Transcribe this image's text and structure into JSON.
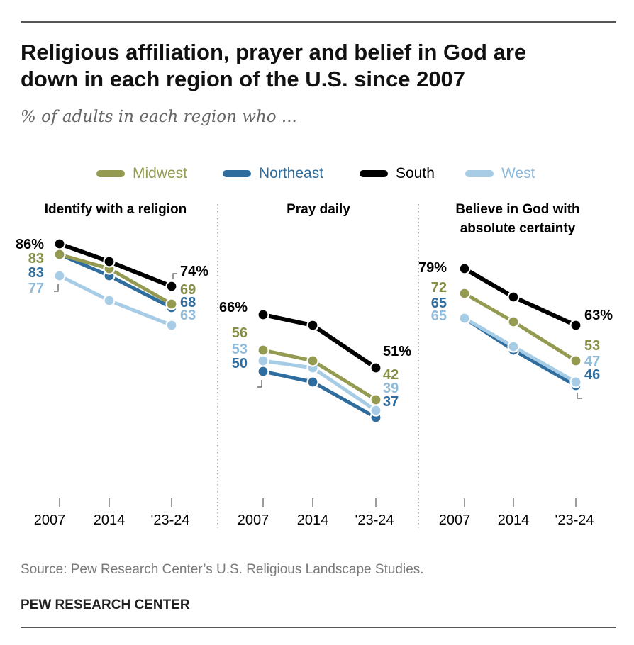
{
  "header": {
    "title_line1": "Religious affiliation, prayer and belief in God are",
    "title_line2": "down in each region of the U.S. since 2007",
    "subtitle": "% of adults in each region who ..."
  },
  "legend": [
    {
      "name": "Midwest",
      "color": "#949B51"
    },
    {
      "name": "Northeast",
      "color": "#2E6D9E"
    },
    {
      "name": "South",
      "color": "#000000"
    },
    {
      "name": "West",
      "color": "#A6CCE6"
    }
  ],
  "chart_data": [
    {
      "type": "line",
      "title": "Identify with a religion",
      "x": [
        "2007",
        "2014",
        "'23-24"
      ],
      "ylim": [
        0,
        100
      ],
      "grid": false,
      "legend_placement": "top",
      "series": [
        {
          "name": "Midwest",
          "color": "#949B51",
          "values": [
            83,
            79,
            69
          ]
        },
        {
          "name": "Northeast",
          "color": "#2E6D9E",
          "values": [
            83,
            77,
            68
          ]
        },
        {
          "name": "South",
          "color": "#000000",
          "values": [
            86,
            81,
            74
          ]
        },
        {
          "name": "West",
          "color": "#A6CCE6",
          "values": [
            77,
            70,
            63
          ]
        }
      ],
      "start_labels": [
        {
          "series": "South",
          "text": "86%"
        },
        {
          "series": "Midwest",
          "text": "83"
        },
        {
          "series": "Northeast",
          "text": "83"
        },
        {
          "series": "West",
          "text": "77"
        }
      ],
      "end_labels": [
        {
          "series": "South",
          "text": "74%"
        },
        {
          "series": "Midwest",
          "text": "69"
        },
        {
          "series": "Northeast",
          "text": "68"
        },
        {
          "series": "West",
          "text": "63"
        }
      ]
    },
    {
      "type": "line",
      "title": "Pray daily",
      "x": [
        "2007",
        "2014",
        "'23-24"
      ],
      "ylim": [
        0,
        100
      ],
      "grid": false,
      "series": [
        {
          "name": "Midwest",
          "color": "#949B51",
          "values": [
            56,
            53,
            42
          ]
        },
        {
          "name": "Northeast",
          "color": "#2E6D9E",
          "values": [
            50,
            47,
            37
          ]
        },
        {
          "name": "South",
          "color": "#000000",
          "values": [
            66,
            63,
            51
          ]
        },
        {
          "name": "West",
          "color": "#A6CCE6",
          "values": [
            53,
            51,
            39
          ]
        }
      ],
      "start_labels": [
        {
          "series": "South",
          "text": "66%"
        },
        {
          "series": "Midwest",
          "text": "56"
        },
        {
          "series": "West",
          "text": "53"
        },
        {
          "series": "Northeast",
          "text": "50"
        }
      ],
      "end_labels": [
        {
          "series": "South",
          "text": "51%"
        },
        {
          "series": "Midwest",
          "text": "42"
        },
        {
          "series": "West",
          "text": "39"
        },
        {
          "series": "Northeast",
          "text": "37"
        }
      ]
    },
    {
      "type": "line",
      "title": "Believe in God with absolute certainty",
      "x": [
        "2007",
        "2014",
        "'23-24"
      ],
      "ylim": [
        0,
        100
      ],
      "grid": false,
      "series": [
        {
          "name": "Midwest",
          "color": "#949B51",
          "values": [
            72,
            64,
            53
          ]
        },
        {
          "name": "Northeast",
          "color": "#2E6D9E",
          "values": [
            65,
            56,
            46
          ]
        },
        {
          "name": "South",
          "color": "#000000",
          "values": [
            79,
            71,
            63
          ]
        },
        {
          "name": "West",
          "color": "#A6CCE6",
          "values": [
            65,
            57,
            47
          ]
        }
      ],
      "start_labels": [
        {
          "series": "South",
          "text": "79%"
        },
        {
          "series": "Midwest",
          "text": "72"
        },
        {
          "series": "Northeast",
          "text": "65"
        },
        {
          "series": "West",
          "text": "65"
        }
      ],
      "end_labels": [
        {
          "series": "South",
          "text": "63%"
        },
        {
          "series": "Midwest",
          "text": "53"
        },
        {
          "series": "West",
          "text": "47"
        },
        {
          "series": "Northeast",
          "text": "46"
        }
      ]
    }
  ],
  "footer": {
    "source": "Source: Pew Research Center’s U.S. Religious Landscape Studies.",
    "brand": "PEW RESEARCH CENTER"
  }
}
